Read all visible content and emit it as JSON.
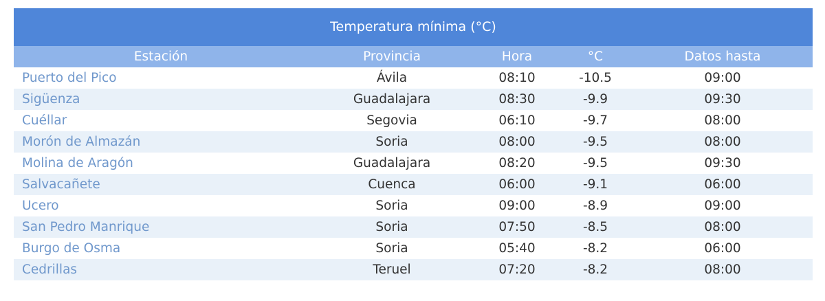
{
  "table": {
    "title": "Temperatura mínima (°C)",
    "columns": [
      "Estación",
      "Provincia",
      "Hora",
      "°C",
      "Datos hasta"
    ],
    "rows": [
      [
        "Puerto del Pico",
        "Ávila",
        "08:10",
        "-10.5",
        "09:00"
      ],
      [
        "Sigüenza",
        "Guadalajara",
        "08:30",
        "-9.9",
        "09:30"
      ],
      [
        "Cuéllar",
        "Segovia",
        "06:10",
        "-9.7",
        "08:00"
      ],
      [
        "Morón de Almazán",
        "Soria",
        "08:00",
        "-9.5",
        "08:00"
      ],
      [
        "Molina de Aragón",
        "Guadalajara",
        "08:20",
        "-9.5",
        "09:30"
      ],
      [
        "Salvacañete",
        "Cuenca",
        "06:00",
        "-9.1",
        "06:00"
      ],
      [
        "Ucero",
        "Soria",
        "09:00",
        "-8.9",
        "09:00"
      ],
      [
        "San Pedro Manrique",
        "Soria",
        "07:50",
        "-8.5",
        "08:00"
      ],
      [
        "Burgo de Osma",
        "Soria",
        "05:40",
        "-8.2",
        "06:00"
      ],
      [
        "Cedrillas",
        "Teruel",
        "07:20",
        "-8.2",
        "08:00"
      ]
    ]
  }
}
